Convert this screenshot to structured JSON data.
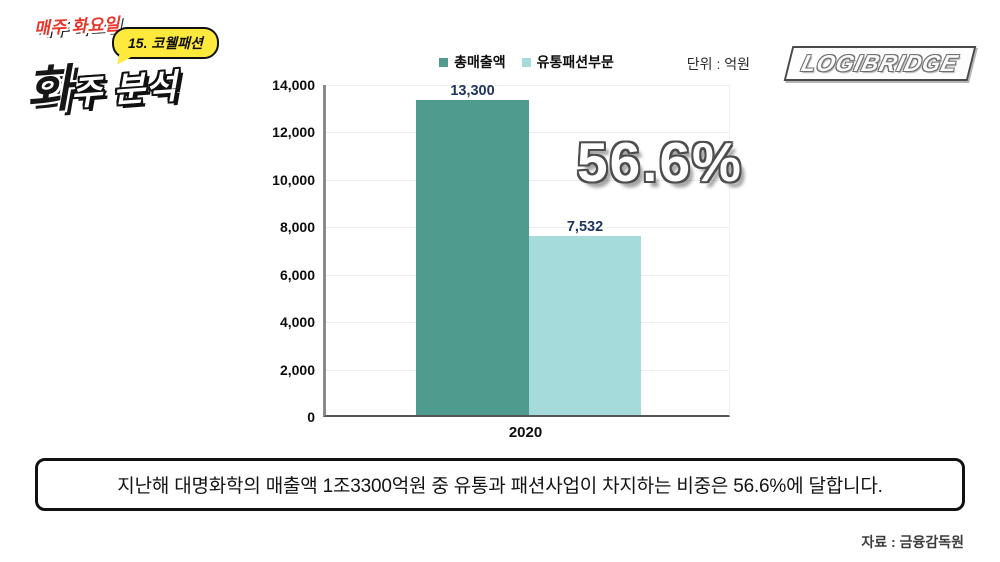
{
  "header": {
    "schedule_label": "매주 화요일",
    "episode_badge": "15. 코웰패션",
    "title_first": "화",
    "title_rest": "주 분석",
    "brand_logo": "LOGIBRIDGE"
  },
  "chart": {
    "unit_label": "단위 : 억원",
    "highlight_percent": "56.6%"
  },
  "chart_data": {
    "type": "bar",
    "title": "",
    "categories": [
      "2020"
    ],
    "series": [
      {
        "name": "총매출액",
        "values": [
          13300
        ],
        "color": "#4f9c8f"
      },
      {
        "name": "유통패션부문",
        "values": [
          7532
        ],
        "color": "#a5dcdb"
      }
    ],
    "value_labels": [
      "13,300",
      "7,532"
    ],
    "annotation": "56.6%",
    "xlabel": "",
    "ylabel": "억원",
    "ylim": [
      0,
      14000
    ],
    "ytick_step": 2000,
    "yticks": [
      "0",
      "2,000",
      "4,000",
      "6,000",
      "8,000",
      "10,000",
      "12,000",
      "14,000"
    ],
    "grid": true,
    "legend_position": "top-center"
  },
  "footer": {
    "summary": "지난해 대명화학의 매출액 1조3300억원 중 유통과 패션사업이 차지하는 비중은 56.6%에 달합니다.",
    "source": "자료 : 금융감독원"
  }
}
